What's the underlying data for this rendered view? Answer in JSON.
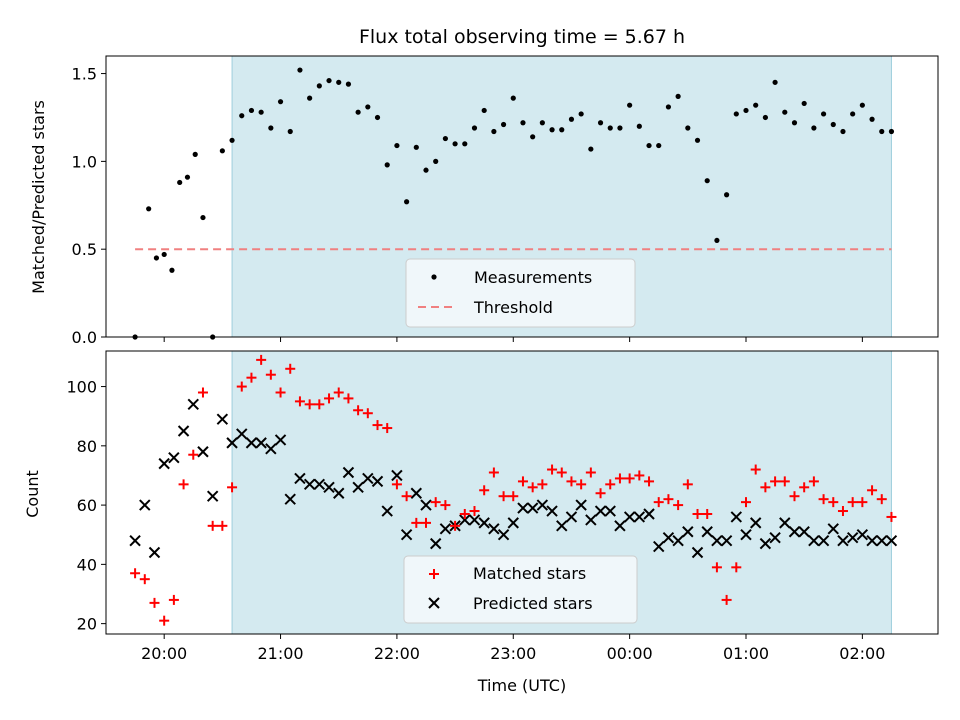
{
  "chart_data": [
    {
      "type": "scatter",
      "title": "Flux total observing time = 5.67 h",
      "xlabel": "",
      "ylabel": "Matched/Predicted stars",
      "ylim": [
        0,
        1.6
      ],
      "y_ticks": [
        "0.0",
        "0.5",
        "1.0",
        "1.5"
      ],
      "x_range_hours": [
        19.5,
        26.65
      ],
      "observing_window": [
        "20:35",
        "26:15"
      ],
      "shade_color": "#d4eaf0",
      "legend": {
        "placement": "lower-center",
        "entries": [
          "Measurements",
          "Threshold"
        ]
      },
      "series": [
        {
          "name": "Measurements",
          "color": "#000000",
          "marker": "dot",
          "x": [
            "19:45",
            "19:52",
            "19:56",
            "20:00",
            "20:04",
            "20:08",
            "20:12",
            "20:16",
            "20:20",
            "20:25",
            "20:30",
            "20:35",
            "20:40",
            "20:45",
            "20:50",
            "20:55",
            "21:00",
            "21:05",
            "21:10",
            "21:15",
            "21:20",
            "21:25",
            "21:30",
            "21:35",
            "21:40",
            "21:45",
            "21:50",
            "21:55",
            "22:00",
            "22:05",
            "22:10",
            "22:15",
            "22:20",
            "22:25",
            "22:30",
            "22:35",
            "22:40",
            "22:45",
            "22:50",
            "22:55",
            "23:00",
            "23:05",
            "23:10",
            "23:15",
            "23:20",
            "23:25",
            "23:30",
            "23:35",
            "23:40",
            "23:45",
            "23:50",
            "23:55",
            "24:00",
            "24:05",
            "24:10",
            "24:15",
            "24:20",
            "24:25",
            "24:30",
            "24:35",
            "24:40",
            "24:45",
            "24:50",
            "24:55",
            "25:00",
            "25:05",
            "25:10",
            "25:15",
            "25:20",
            "25:25",
            "25:30",
            "25:35",
            "25:40",
            "25:45",
            "25:50",
            "25:55",
            "26:00",
            "26:05",
            "26:10",
            "26:15"
          ],
          "y": [
            0.0,
            0.73,
            0.45,
            0.47,
            0.38,
            0.88,
            0.91,
            1.04,
            0.68,
            0.0,
            1.06,
            1.12,
            1.26,
            1.29,
            1.28,
            1.19,
            1.34,
            1.17,
            1.52,
            1.36,
            1.43,
            1.46,
            1.45,
            1.44,
            1.28,
            1.31,
            1.25,
            0.98,
            1.09,
            0.77,
            1.08,
            0.95,
            1.0,
            1.13,
            1.1,
            1.1,
            1.19,
            1.29,
            1.17,
            1.21,
            1.36,
            1.22,
            1.14,
            1.22,
            1.18,
            1.18,
            1.24,
            1.27,
            1.07,
            1.22,
            1.19,
            1.19,
            1.32,
            1.2,
            1.09,
            1.09,
            1.31,
            1.37,
            1.19,
            1.12,
            0.89,
            0.55,
            0.81,
            1.27,
            1.29,
            1.32,
            1.25,
            1.45,
            1.28,
            1.22,
            1.33,
            1.19,
            1.27,
            1.21,
            1.17,
            1.27,
            1.32,
            1.24,
            1.17,
            1.17
          ]
        },
        {
          "name": "Threshold",
          "color": "#f08080",
          "style": "dashed",
          "x": [
            "19:45",
            "26:15"
          ],
          "y": [
            0.5,
            0.5
          ]
        }
      ]
    },
    {
      "type": "scatter",
      "title": "",
      "xlabel": "Time (UTC)",
      "ylabel": "Count",
      "ylim": [
        16.5,
        112
      ],
      "y_ticks": [
        "20",
        "40",
        "60",
        "80",
        "100"
      ],
      "x_ticks": [
        "20:00",
        "21:00",
        "22:00",
        "23:00",
        "00:00",
        "01:00",
        "02:00"
      ],
      "x_range_hours": [
        19.5,
        26.65
      ],
      "observing_window": [
        "20:35",
        "26:15"
      ],
      "shade_color": "#d4eaf0",
      "legend": {
        "placement": "lower-center",
        "entries": [
          "Matched stars",
          "Predicted stars"
        ]
      },
      "series": [
        {
          "name": "Matched stars",
          "color": "#ff0000",
          "marker": "plus",
          "x": [
            "19:45",
            "19:50",
            "19:55",
            "20:00",
            "20:05",
            "20:10",
            "20:15",
            "20:20",
            "20:25",
            "20:30",
            "20:35",
            "20:40",
            "20:45",
            "20:50",
            "20:55",
            "21:00",
            "21:05",
            "21:10",
            "21:15",
            "21:20",
            "21:25",
            "21:30",
            "21:35",
            "21:40",
            "21:45",
            "21:50",
            "21:55",
            "22:00",
            "22:05",
            "22:10",
            "22:15",
            "22:20",
            "22:25",
            "22:30",
            "22:35",
            "22:40",
            "22:45",
            "22:50",
            "22:55",
            "23:00",
            "23:05",
            "23:10",
            "23:15",
            "23:20",
            "23:25",
            "23:30",
            "23:35",
            "23:40",
            "23:45",
            "23:50",
            "23:55",
            "24:00",
            "24:05",
            "24:10",
            "24:15",
            "24:20",
            "24:25",
            "24:30",
            "24:35",
            "24:40",
            "24:45",
            "24:50",
            "24:55",
            "25:00",
            "25:05",
            "25:10",
            "25:15",
            "25:20",
            "25:25",
            "25:30",
            "25:35",
            "25:40",
            "25:45",
            "25:50",
            "25:55",
            "26:00",
            "26:05",
            "26:10",
            "26:15"
          ],
          "y": [
            37,
            35,
            27,
            21,
            28,
            67,
            77,
            98,
            53,
            53,
            66,
            100,
            103,
            109,
            104,
            98,
            106,
            95,
            94,
            94,
            96,
            98,
            96,
            92,
            91,
            87,
            86,
            67,
            63,
            54,
            54,
            61,
            60,
            53,
            57,
            58,
            65,
            71,
            63,
            63,
            68,
            66,
            67,
            72,
            71,
            68,
            67,
            71,
            64,
            67,
            69,
            69,
            70,
            68,
            61,
            62,
            60,
            67,
            57,
            57,
            39,
            28,
            39,
            61,
            72,
            66,
            68,
            68,
            63,
            66,
            68,
            62,
            61,
            58,
            61,
            61,
            65,
            62,
            56
          ]
        },
        {
          "name": "Predicted stars",
          "color": "#000000",
          "marker": "x",
          "x": [
            "19:45",
            "19:50",
            "19:55",
            "20:00",
            "20:05",
            "20:10",
            "20:15",
            "20:20",
            "20:25",
            "20:30",
            "20:35",
            "20:40",
            "20:45",
            "20:50",
            "20:55",
            "21:00",
            "21:05",
            "21:10",
            "21:15",
            "21:20",
            "21:25",
            "21:30",
            "21:35",
            "21:40",
            "21:45",
            "21:50",
            "21:55",
            "22:00",
            "22:05",
            "22:10",
            "22:15",
            "22:20",
            "22:25",
            "22:30",
            "22:35",
            "22:40",
            "22:45",
            "22:50",
            "22:55",
            "23:00",
            "23:05",
            "23:10",
            "23:15",
            "23:20",
            "23:25",
            "23:30",
            "23:35",
            "23:40",
            "23:45",
            "23:50",
            "23:55",
            "24:00",
            "24:05",
            "24:10",
            "24:15",
            "24:20",
            "24:25",
            "24:30",
            "24:35",
            "24:40",
            "24:45",
            "24:50",
            "24:55",
            "25:00",
            "25:05",
            "25:10",
            "25:15",
            "25:20",
            "25:25",
            "25:30",
            "25:35",
            "25:40",
            "25:45",
            "25:50",
            "25:55",
            "26:00",
            "26:05",
            "26:10",
            "26:15"
          ],
          "y": [
            48,
            60,
            44,
            74,
            76,
            85,
            94,
            78,
            63,
            89,
            81,
            84,
            81,
            81,
            79,
            82,
            62,
            69,
            67,
            67,
            66,
            64,
            71,
            66,
            69,
            68,
            58,
            70,
            50,
            64,
            60,
            47,
            52,
            53,
            55,
            55,
            54,
            52,
            50,
            54,
            59,
            59,
            60,
            58,
            53,
            56,
            60,
            55,
            58,
            58,
            53,
            56,
            56,
            57,
            46,
            49,
            48,
            51,
            44,
            51,
            48,
            48,
            56,
            50,
            54,
            47,
            49,
            54,
            51,
            51,
            48,
            48,
            52,
            48,
            49,
            50,
            48,
            48,
            48
          ]
        }
      ]
    }
  ]
}
